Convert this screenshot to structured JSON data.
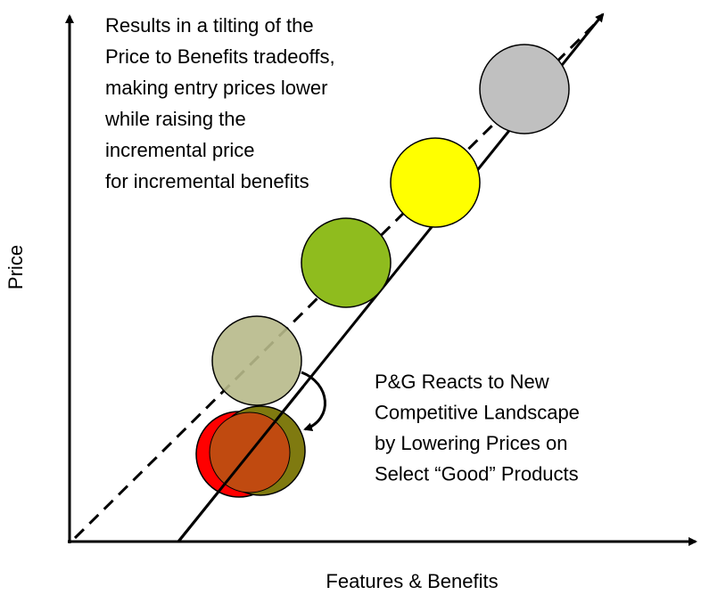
{
  "axes": {
    "y_label": "Price",
    "x_label": "Features & Benefits"
  },
  "annotations": {
    "top": [
      "Results in a tilting of the",
      "Price to Benefits tradeoffs,",
      "making entry prices lower",
      "while raising the",
      "incremental price",
      "for incremental benefits"
    ],
    "bottom": [
      "P&G Reacts to New",
      "Competitive Landscape",
      "by Lowering Prices on",
      "Select “Good” Products"
    ]
  }
}
